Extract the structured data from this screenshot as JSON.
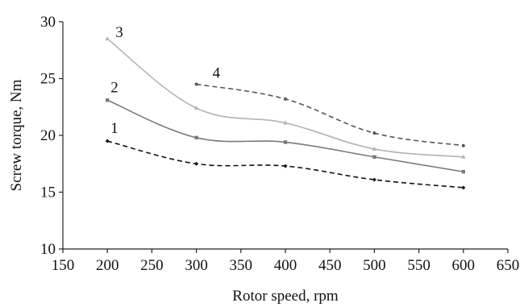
{
  "chart_data": {
    "type": "line",
    "title": "",
    "xlabel": "Rotor speed, rpm",
    "ylabel": "Screw torque, Nm",
    "xlim": [
      150,
      650
    ],
    "ylim": [
      10,
      30
    ],
    "xticks": [
      150,
      200,
      250,
      300,
      350,
      400,
      450,
      500,
      550,
      600,
      650
    ],
    "yticks": [
      10,
      15,
      20,
      25,
      30
    ],
    "grid": false,
    "legend": "none",
    "series": [
      {
        "name": "1",
        "x": [
          200,
          300,
          400,
          500,
          600
        ],
        "y": [
          19.5,
          17.5,
          17.3,
          16.1,
          15.4
        ],
        "color": "#111111",
        "dash": "dashed",
        "marker": "diamond"
      },
      {
        "name": "2",
        "x": [
          200,
          300,
          400,
          500,
          600
        ],
        "y": [
          23.1,
          19.8,
          19.4,
          18.1,
          16.8
        ],
        "color": "#7a7a7a",
        "dash": "solid",
        "marker": "square"
      },
      {
        "name": "3",
        "x": [
          200,
          300,
          400,
          500,
          600
        ],
        "y": [
          28.5,
          22.4,
          21.1,
          18.8,
          18.1
        ],
        "color": "#b3b3b3",
        "dash": "solid",
        "marker": "triangle"
      },
      {
        "name": "4",
        "x": [
          300,
          400,
          500,
          600
        ],
        "y": [
          24.5,
          23.2,
          20.2,
          19.1
        ],
        "color": "#555555",
        "dash": "dashed",
        "marker": "circle"
      }
    ]
  }
}
